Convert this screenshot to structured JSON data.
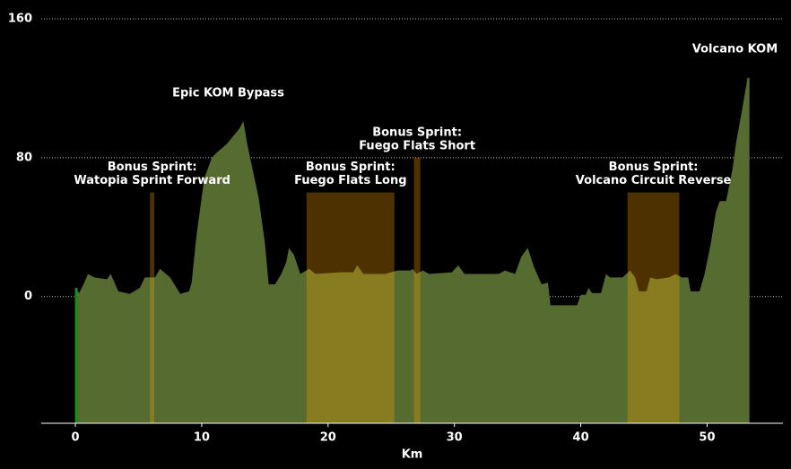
{
  "chart_data": {
    "type": "area",
    "xlabel": "Km",
    "xlim": [
      -2.7,
      56
    ],
    "xticks": [
      0,
      10,
      20,
      30,
      40,
      50
    ],
    "ylim": [
      -73,
      160
    ],
    "yticks": [
      0,
      80,
      160
    ],
    "grid": true,
    "color": "#556b2f",
    "x": [
      0,
      0.3,
      0.7,
      1.0,
      1.5,
      2.5,
      2.8,
      3.4,
      4.3,
      5.1,
      5.5,
      6.3,
      6.7,
      7.5,
      8.3,
      9.0,
      9.2,
      9.6,
      10.2,
      10.8,
      11.2,
      12.0,
      13.0,
      13.3,
      13.6,
      14.5,
      15.0,
      15.3,
      15.8,
      16.3,
      16.7,
      16.9,
      17.3,
      17.8,
      18.5,
      19.0,
      21.0,
      22.0,
      22.3,
      22.8,
      24.5,
      25.5,
      26.5,
      26.7,
      27.0,
      27.5,
      28.0,
      29.8,
      30.3,
      30.8,
      33.5,
      34.0,
      34.8,
      35.3,
      35.8,
      36.3,
      36.9,
      37.4,
      37.6,
      39.7,
      40.0,
      40.4,
      40.6,
      40.9,
      41.6,
      42.0,
      42.3,
      43.3,
      43.9,
      44.3,
      44.6,
      45.2,
      45.5,
      46.0,
      47.0,
      47.5,
      48.0,
      48.5,
      48.7,
      49.4,
      49.8,
      50.3,
      50.7,
      51.0,
      51.5,
      52.0,
      52.3,
      52.8,
      53.2,
      53.35
    ],
    "values": [
      5,
      2,
      8,
      13,
      11,
      10,
      13,
      3,
      1.5,
      5,
      11,
      11,
      16,
      11,
      1.5,
      3,
      8,
      36,
      68,
      80,
      83,
      88,
      97,
      101,
      88,
      57,
      31,
      7,
      7,
      13,
      20,
      28,
      24,
      13,
      16,
      13,
      14,
      14,
      18,
      13,
      13,
      15,
      15,
      16,
      13,
      15,
      13,
      14,
      18,
      13,
      13,
      15,
      13,
      23,
      28,
      17,
      7,
      8,
      -5,
      -5,
      1,
      1,
      5,
      2,
      2,
      13,
      11,
      11,
      15,
      11,
      3,
      3,
      11,
      10,
      11,
      13,
      11,
      11,
      3,
      3,
      13,
      31,
      49,
      55,
      55,
      73,
      89,
      109,
      126,
      126
    ],
    "start_line": {
      "x": 0,
      "color": "#1a8a1a"
    },
    "segments": [
      {
        "label": "Bonus Sprint:",
        "name": "Watopia Sprint Forward",
        "start": 5.9,
        "end": 6.25,
        "top": 60
      },
      {
        "label": "Bonus Sprint:",
        "name": "Fuego Flats Long",
        "start": 18.3,
        "end": 25.25,
        "top": 60
      },
      {
        "label": "Bonus Sprint:",
        "name": "Fuego Flats Short",
        "start": 26.8,
        "end": 27.3,
        "top": 80
      },
      {
        "label": "Bonus Sprint:",
        "name": "Volcano Circuit Reverse",
        "start": 43.7,
        "end": 47.8,
        "top": 60
      }
    ],
    "segment_color": "#ffa500",
    "annotations": [
      {
        "text": "Epic KOM Bypass",
        "x": 12.1,
        "y": 117
      },
      {
        "text": "Volcano KOM",
        "x": 52.2,
        "y": 142.5
      }
    ]
  }
}
